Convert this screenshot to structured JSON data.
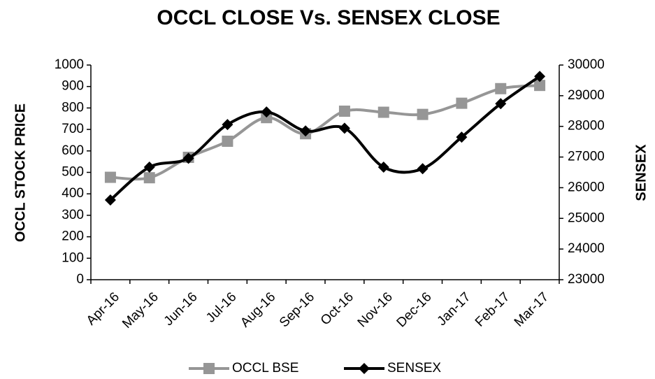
{
  "chart_data": {
    "type": "line",
    "title": "OCCL CLOSE Vs. SENSEX CLOSE",
    "y_label": "OCCL STOCK PRICE",
    "y2_label": "SENSEX",
    "categories": [
      "Apr-16",
      "May-16",
      "Jun-16",
      "Jul-16",
      "Aug-16",
      "Sep-16",
      "Oct-16",
      "Nov-16",
      "Dec-16",
      "Jan-17",
      "Feb-17",
      "Mar-17"
    ],
    "series": [
      {
        "name": "OCCL BSE",
        "color": "#969696",
        "marker": "square",
        "values": [
          477,
          475,
          570,
          645,
          755,
          680,
          785,
          780,
          770,
          822,
          890,
          905
        ]
      },
      {
        "name": "SENSEX",
        "color": "#000000",
        "marker": "diamond",
        "axis": "y2",
        "values": [
          25600,
          26670,
          26960,
          28060,
          28470,
          27850,
          27940,
          26670,
          26620,
          27650,
          28740,
          29630
        ]
      }
    ],
    "ylim": [
      0,
      1000
    ],
    "yticks": [
      0,
      100,
      200,
      300,
      400,
      500,
      600,
      700,
      800,
      900,
      1000
    ],
    "y2lim": [
      23000,
      30000
    ],
    "y2ticks": [
      23000,
      24000,
      25000,
      26000,
      27000,
      28000,
      29000,
      30000
    ],
    "smooth": true,
    "legend": "bottom"
  }
}
